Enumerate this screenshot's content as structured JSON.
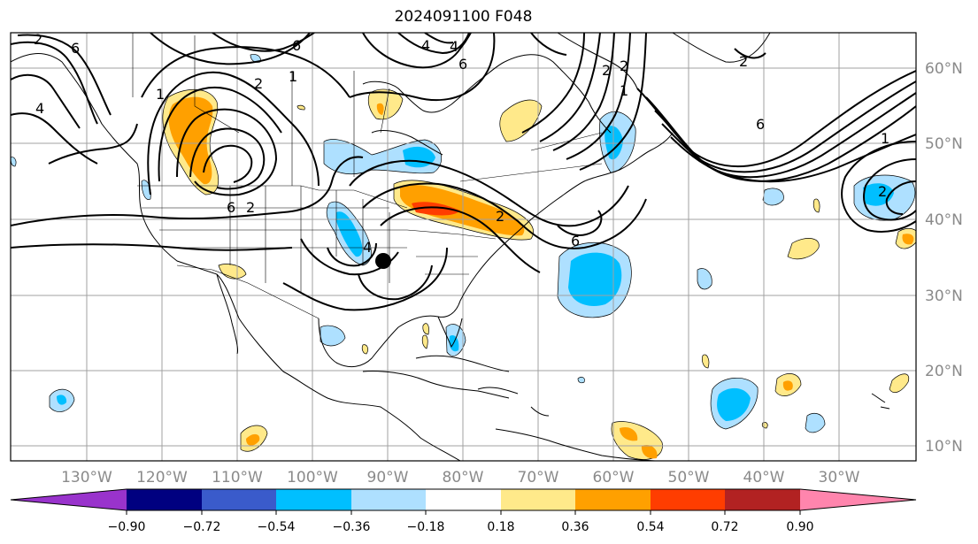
{
  "title": "2024091100 F048",
  "lon_labels": [
    "130°W",
    "120°W",
    "110°W",
    "100°W",
    "90°W",
    "80°W",
    "70°W",
    "60°W",
    "50°W",
    "40°W",
    "30°W"
  ],
  "lat_labels": [
    "60°N",
    "50°N",
    "40°N",
    "30°N",
    "20°N",
    "10°N"
  ],
  "colorbar": {
    "ticks": [
      "−0.90",
      "−0.72",
      "−0.54",
      "−0.36",
      "−0.18",
      "0.18",
      "0.36",
      "0.54",
      "0.72",
      "0.90"
    ],
    "colors": [
      "#9933cc",
      "#000080",
      "#3a5bcb",
      "#00bfff",
      "#aee0ff",
      "#ffffff",
      "#ffe98a",
      "#ffa000",
      "#ff3d00",
      "#b22222",
      "#ff85ad"
    ]
  },
  "contour_labels": [
    "2",
    "6",
    "4",
    "1",
    "2",
    "6",
    "6",
    "4",
    "2",
    "1",
    "4",
    "6",
    "2",
    "2",
    "6",
    "1",
    "2",
    "6",
    "4",
    "2",
    "1",
    "2"
  ],
  "marker": "storm-center"
}
